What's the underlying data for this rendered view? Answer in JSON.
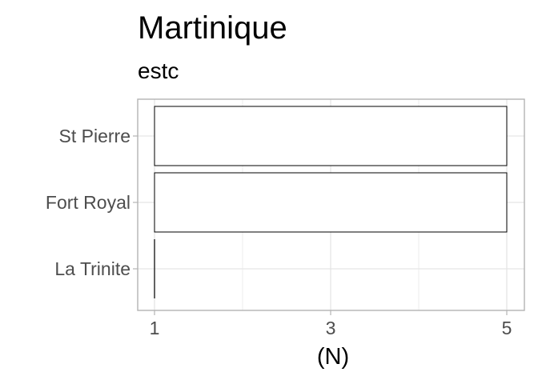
{
  "chart_data": {
    "type": "bar",
    "orientation": "horizontal",
    "title": "Martinique",
    "subtitle": "estc",
    "xlabel": "(N)",
    "ylabel": "",
    "categories": [
      "St Pierre",
      "Fort Royal",
      "La Trinite"
    ],
    "values": [
      5,
      5,
      1
    ],
    "xlim": [
      1,
      5
    ],
    "x_ticks": [
      1,
      3,
      5
    ],
    "grid": true,
    "bar_fill": "#ffffff",
    "bar_stroke": "#000000",
    "panel_border": "#b3b3b3",
    "grid_color": "#e5e5e5"
  }
}
